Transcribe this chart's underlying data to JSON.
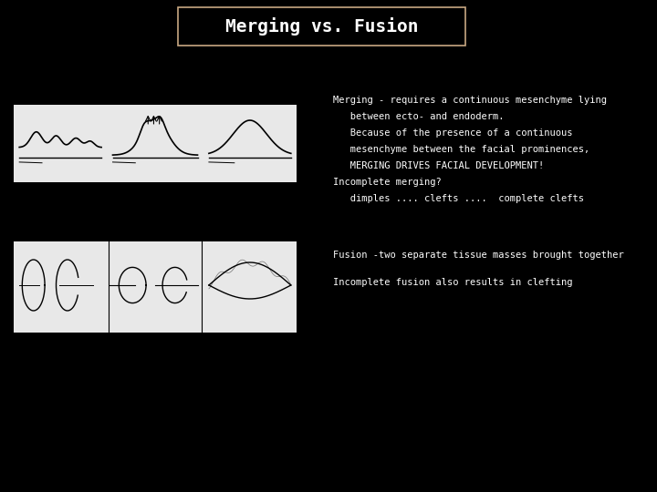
{
  "background_color": "#000000",
  "title": "Merging vs. Fusion",
  "title_box_edge_color": "#c8a882",
  "title_font_color": "#ffffff",
  "title_fontsize": 14,
  "merging_lines": [
    "Merging - requires a continuous mesenchyme lying",
    "   between ecto- and endoderm.",
    "   Because of the presence of a continuous",
    "   mesenchyme between the facial prominences,",
    "   MERGING DRIVES FACIAL DEVELOPMENT!",
    "Incomplete merging?",
    "   dimples .... clefts ....  complete clefts"
  ],
  "fusion_lines": [
    "Fusion -two separate tissue masses brought together",
    "Incomplete fusion also results in clefting"
  ],
  "text_color": "#ffffff",
  "text_fontsize": 7.5,
  "image_bg": "#e8e8e8"
}
